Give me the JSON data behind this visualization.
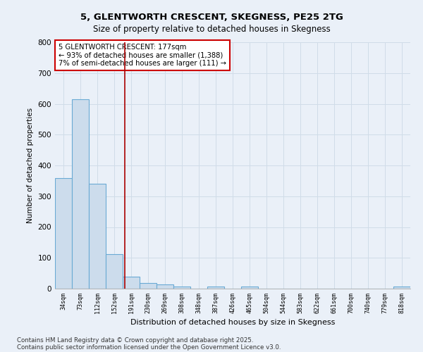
{
  "title1": "5, GLENTWORTH CRESCENT, SKEGNESS, PE25 2TG",
  "title2": "Size of property relative to detached houses in Skegness",
  "xlabel": "Distribution of detached houses by size in Skegness",
  "ylabel": "Number of detached properties",
  "categories": [
    "34sqm",
    "73sqm",
    "112sqm",
    "152sqm",
    "191sqm",
    "230sqm",
    "269sqm",
    "308sqm",
    "348sqm",
    "387sqm",
    "426sqm",
    "465sqm",
    "504sqm",
    "544sqm",
    "583sqm",
    "622sqm",
    "661sqm",
    "700sqm",
    "740sqm",
    "779sqm",
    "818sqm"
  ],
  "values": [
    360,
    615,
    340,
    113,
    40,
    18,
    14,
    8,
    0,
    8,
    0,
    8,
    0,
    0,
    0,
    0,
    0,
    0,
    0,
    0,
    8
  ],
  "bar_color": "#ccdcec",
  "bar_edge_color": "#6aaad4",
  "bar_edge_width": 0.8,
  "grid_color": "#d0dce8",
  "bg_color": "#eaf0f8",
  "red_line_x": 3.64,
  "red_line_color": "#aa0000",
  "annotation_text": "5 GLENTWORTH CRESCENT: 177sqm\n← 93% of detached houses are smaller (1,388)\n7% of semi-detached houses are larger (111) →",
  "annotation_box_facecolor": "#ffffff",
  "annotation_box_edge": "#cc0000",
  "ylim": [
    0,
    800
  ],
  "yticks": [
    0,
    100,
    200,
    300,
    400,
    500,
    600,
    700,
    800
  ],
  "footnote1": "Contains HM Land Registry data © Crown copyright and database right 2025.",
  "footnote2": "Contains public sector information licensed under the Open Government Licence v3.0."
}
